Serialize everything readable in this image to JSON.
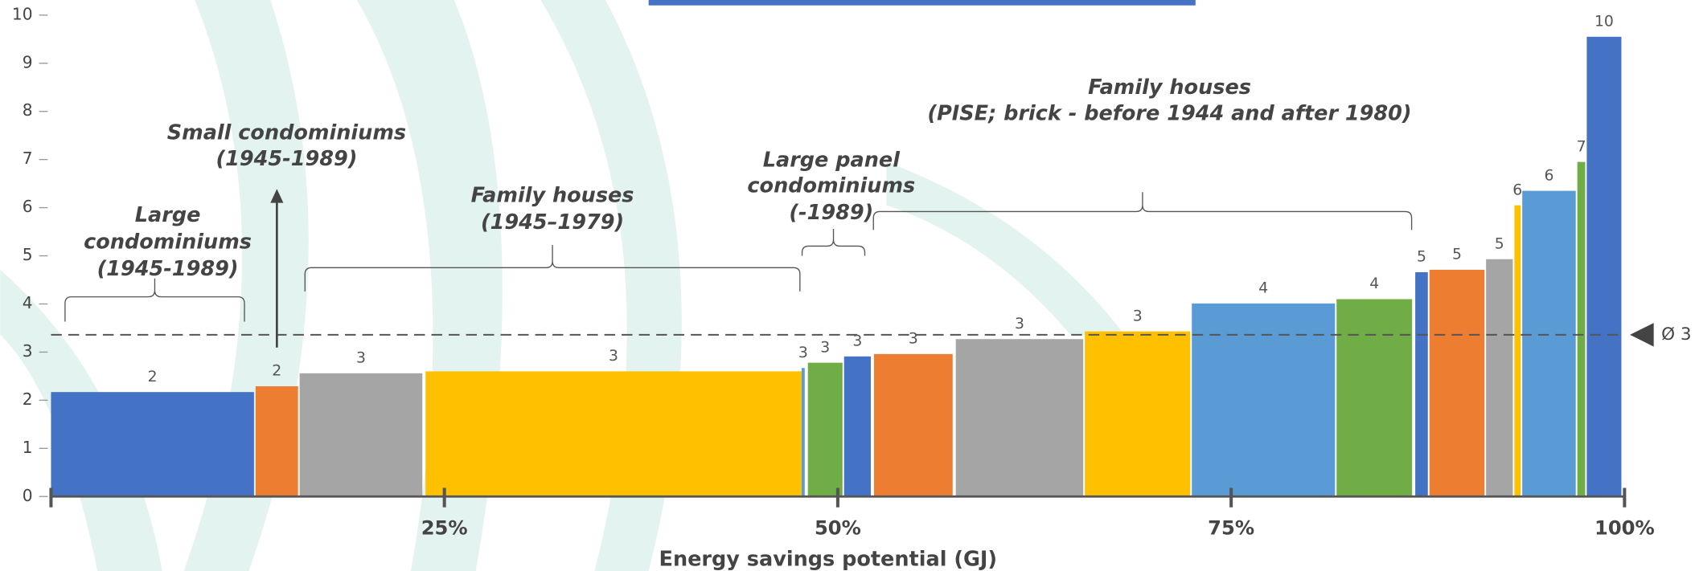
{
  "chart_data": {
    "type": "bar",
    "x_label": "Energy savings potential (GJ)",
    "x_start": [
      0,
      13.0,
      15.8,
      23.8,
      47.7,
      48.1,
      50.4,
      52.3,
      57.5,
      65.7,
      72.5,
      81.7,
      86.7,
      87.6,
      91.2,
      93.0,
      93.5,
      97.0,
      97.6
    ],
    "x_end": [
      12.9,
      15.7,
      23.6,
      47.7,
      47.9,
      50.3,
      52.1,
      57.3,
      65.6,
      72.4,
      81.6,
      86.5,
      87.5,
      91.1,
      92.9,
      93.4,
      96.9,
      97.5,
      99.8
    ],
    "values": [
      2.17,
      2.29,
      2.56,
      2.6,
      2.67,
      2.78,
      2.91,
      2.96,
      3.27,
      3.43,
      4.01,
      4.1,
      4.66,
      4.71,
      4.93,
      6.05,
      6.35,
      6.95,
      9.55
    ],
    "value_labels": [
      "2",
      "2",
      "3",
      "3",
      "3",
      "3",
      "3",
      "3",
      "3",
      "3",
      "4",
      "4",
      "5",
      "5",
      "5",
      "6",
      "6",
      "7",
      "10"
    ],
    "colors": [
      "#4472c4",
      "#ed7d31",
      "#a5a5a5",
      "#ffc000",
      "#5b9bd5",
      "#70ad47",
      "#4472c4",
      "#ed7d31",
      "#a5a5a5",
      "#ffc000",
      "#5b9bd5",
      "#70ad47",
      "#4472c4",
      "#ed7d31",
      "#a5a5a5",
      "#ffc000",
      "#5b9bd5",
      "#70ad47",
      "#4472c4"
    ],
    "xlim": [
      0,
      100
    ],
    "xticks": [
      {
        "value": 25,
        "label": "25%"
      },
      {
        "value": 50,
        "label": "50%"
      },
      {
        "value": 75,
        "label": "75%"
      },
      {
        "value": 100,
        "label": "100%"
      }
    ],
    "ylim": [
      0,
      10
    ],
    "yticks": [
      0,
      1,
      2,
      3,
      4,
      5,
      6,
      7,
      8,
      9,
      10
    ],
    "average": {
      "value": 3.36,
      "label": "Ø 3"
    },
    "annotations": [
      {
        "lines": [
          "Large",
          "condominiums",
          "(1945-1989)"
        ]
      },
      {
        "lines": [
          "Small condominiums",
          "(1945-1989)"
        ]
      },
      {
        "lines": [
          "Family houses",
          "(1945–1979)"
        ]
      },
      {
        "lines": [
          "Large panel",
          "condominiums",
          "(-1989)"
        ]
      },
      {
        "lines": [
          "Family houses",
          "(PISE; brick - before 1944 and after 1980)"
        ]
      }
    ]
  }
}
